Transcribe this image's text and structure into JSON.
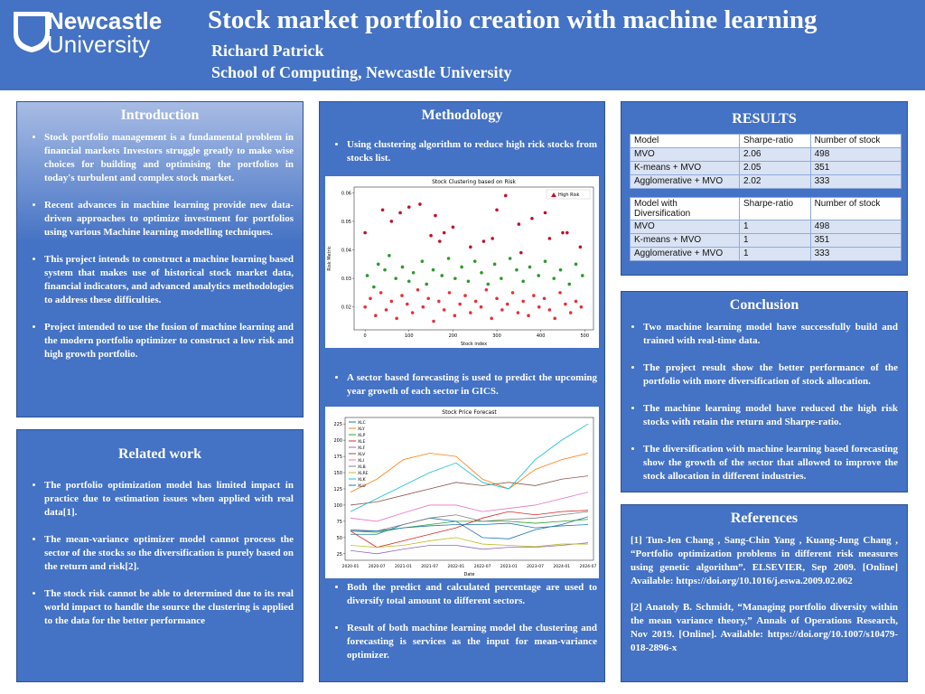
{
  "header": {
    "logo_line1": "Newcastle",
    "logo_line2": "University",
    "title": "Stock market portfolio creation with machine learning",
    "author": "Richard Patrick",
    "affiliation": "School of Computing, Newcastle University"
  },
  "introduction": {
    "heading": "Introduction",
    "paragraphs": [
      "Stock portfolio management is a fundamental problem in financial markets Investors struggle greatly to make wise choices for building and optimising the portfolios in today's turbulent and complex stock market.",
      "Recent advances in machine learning provide new data-driven approaches to optimize investment for portfolios using various Machine learning modelling techniques.",
      "This project intends to construct a machine learning based system that makes use of historical stock market data, financial indicators, and advanced analytics methodologies to address these difficulties.",
      "Project intended to use the fusion of machine learning and the modern portfolio optimizer to construct a low risk and high growth portfolio."
    ]
  },
  "related_work": {
    "heading": "Related work",
    "paragraphs": [
      "The portfolio optimization model has limited impact in practice due to estimation issues when applied with real data[1].",
      "The mean-variance optimizer model cannot process the sector of the stocks so the diversification is purely based on the return and risk[2].",
      "The stock risk cannot be able to determined due to its real world impact to handle the source the clustering is applied to the data for the better performance"
    ]
  },
  "methodology": {
    "heading": "Methodology",
    "paragraphs": [
      "Using clustering algorithm to reduce high rick stocks from stocks list.",
      "A sector based forecasting is used to predict the upcoming year growth of each sector in GICS.",
      "Both the predict and calculated percentage are used to diversify total amount to different sectors.",
      "Result of both machine learning model the clustering and forecasting is services as the input for mean-variance optimizer."
    ]
  },
  "results": {
    "heading": "RESULTS",
    "table1": {
      "header": [
        "Model",
        "Sharpe-ratio",
        "Number of stock"
      ],
      "rows": [
        [
          "MVO",
          2.06,
          498
        ],
        [
          "K-means + MVO",
          2.05,
          351
        ],
        [
          "Agglomerative + MVO",
          2.02,
          333
        ]
      ]
    },
    "table2": {
      "header": [
        "Model with Diversification",
        "Sharpe-ratio",
        "Number of stock"
      ],
      "rows": [
        [
          "MVO",
          1,
          498
        ],
        [
          "K-means + MVO",
          1,
          351
        ],
        [
          "Agglomerative + MVO",
          1,
          333
        ]
      ]
    }
  },
  "conclusion": {
    "heading": "Conclusion",
    "paragraphs": [
      "Two machine learning model have successfully build and trained with real-time data.",
      "The project result show the better performance of the portfolio with more diversification of stock allocation.",
      "The machine learning model have reduced the high risk stocks with retain the return and Sharpe-ratio.",
      "The diversification with machine learning based forecasting show the growth of the sector that allowed to improve the stock allocation in different industries."
    ]
  },
  "references": {
    "heading": "References",
    "paragraphs": [
      "[1] Tun-Jen Chang , Sang-Chin Yang , Kuang-Jung Chang , “Portfolio optimization problems in different risk measures using genetic algorithm”. ELSEVIER, Sep 2009. [Online] Available: https://doi.org/10.1016/j.eswa.2009.02.062",
      "[2] Anatoly B. Schmidt, “Managing portfolio diversity within the mean variance theory,” Annals of Operations Research, Nov 2019. [Online]. Available: https://doi.org/10.1007/s10479-018-2896-x"
    ]
  },
  "chart_data": [
    {
      "type": "scatter",
      "title": "Stock Clustering based on Risk",
      "xlabel": "Stock index",
      "ylabel": "Risk Metric",
      "xlim": [
        -25,
        520
      ],
      "ylim": [
        0.012,
        0.062
      ],
      "xticks": [
        0,
        100,
        200,
        300,
        400,
        500
      ],
      "yticks": [
        0.02,
        0.03,
        0.04,
        0.05,
        0.06
      ],
      "series": [
        {
          "name": "High Risk",
          "color": "#c0102f",
          "x": [
            0,
            40,
            60,
            80,
            100,
            125,
            150,
            160,
            170,
            180,
            200,
            240,
            270,
            290,
            300,
            320,
            350,
            355,
            380,
            410,
            420,
            450,
            460,
            490
          ],
          "values": [
            0.046,
            0.054,
            0.05,
            0.053,
            0.055,
            0.056,
            0.045,
            0.052,
            0.043,
            0.046,
            0.048,
            0.041,
            0.043,
            0.044,
            0.054,
            0.059,
            0.049,
            0.039,
            0.051,
            0.053,
            0.044,
            0.046,
            0.046,
            0.041
          ]
        },
        {
          "color": "#2e9a2e",
          "x": [
            5,
            20,
            30,
            45,
            55,
            70,
            85,
            100,
            110,
            130,
            140,
            155,
            175,
            190,
            205,
            220,
            235,
            250,
            265,
            280,
            295,
            310,
            330,
            345,
            360,
            375,
            395,
            410,
            430,
            445,
            465,
            480,
            495
          ],
          "values": [
            0.031,
            0.027,
            0.035,
            0.033,
            0.038,
            0.03,
            0.034,
            0.029,
            0.032,
            0.036,
            0.028,
            0.033,
            0.031,
            0.037,
            0.03,
            0.034,
            0.029,
            0.036,
            0.032,
            0.028,
            0.035,
            0.03,
            0.037,
            0.033,
            0.029,
            0.034,
            0.031,
            0.036,
            0.03,
            0.033,
            0.028,
            0.035,
            0.031
          ]
        },
        {
          "color": "#e8303a",
          "x": [
            0,
            12,
            24,
            36,
            48,
            60,
            72,
            84,
            96,
            108,
            120,
            132,
            144,
            156,
            168,
            180,
            192,
            204,
            216,
            228,
            240,
            252,
            264,
            276,
            288,
            300,
            312,
            324,
            336,
            348,
            360,
            372,
            384,
            396,
            408,
            420,
            432,
            444,
            456,
            468,
            480,
            492
          ],
          "values": [
            0.02,
            0.023,
            0.017,
            0.025,
            0.019,
            0.022,
            0.016,
            0.024,
            0.021,
            0.018,
            0.026,
            0.02,
            0.023,
            0.015,
            0.022,
            0.019,
            0.025,
            0.017,
            0.021,
            0.024,
            0.018,
            0.022,
            0.02,
            0.026,
            0.016,
            0.023,
            0.019,
            0.021,
            0.025,
            0.018,
            0.022,
            0.017,
            0.024,
            0.02,
            0.023,
            0.019,
            0.016,
            0.025,
            0.021,
            0.018,
            0.022,
            0.02
          ]
        }
      ]
    },
    {
      "type": "line",
      "title": "Stock Price Forecast",
      "xlabel": "Date",
      "categories": [
        "2020-01",
        "2020-07",
        "2021-01",
        "2021-07",
        "2022-01",
        "2022-07",
        "2023-01",
        "2023-07",
        "2024-01",
        "2024-07"
      ],
      "ylim": [
        15,
        235
      ],
      "yticks": [
        25,
        50,
        75,
        100,
        125,
        150,
        175,
        200,
        225
      ],
      "series": [
        {
          "name": "XLC",
          "color": "#1f77b4",
          "values": [
            55,
            55,
            70,
            80,
            75,
            50,
            48,
            62,
            70,
            82
          ]
        },
        {
          "name": "XLY",
          "color": "#ff7f0e",
          "values": [
            120,
            140,
            170,
            180,
            175,
            140,
            125,
            155,
            170,
            180
          ]
        },
        {
          "name": "XLP",
          "color": "#2ca02c",
          "values": [
            60,
            58,
            65,
            70,
            75,
            75,
            75,
            72,
            75,
            78
          ]
        },
        {
          "name": "XLE",
          "color": "#d62728",
          "values": [
            60,
            35,
            45,
            55,
            65,
            80,
            90,
            85,
            90,
            92
          ]
        },
        {
          "name": "XLF",
          "color": "#9467bd",
          "values": [
            30,
            25,
            32,
            38,
            38,
            32,
            35,
            35,
            38,
            42
          ]
        },
        {
          "name": "XLV",
          "color": "#8c564b",
          "values": [
            100,
            105,
            115,
            125,
            135,
            130,
            135,
            130,
            140,
            145
          ]
        },
        {
          "name": "XLI",
          "color": "#e377c2",
          "values": [
            80,
            75,
            88,
            100,
            100,
            90,
            95,
            100,
            110,
            120
          ]
        },
        {
          "name": "XLB",
          "color": "#7f7f7f",
          "values": [
            60,
            60,
            70,
            80,
            85,
            75,
            78,
            80,
            85,
            90
          ]
        },
        {
          "name": "XLRE",
          "color": "#bcbd22",
          "values": [
            38,
            35,
            38,
            45,
            50,
            40,
            38,
            36,
            40,
            40
          ]
        },
        {
          "name": "XLK",
          "color": "#17becf",
          "values": [
            90,
            110,
            130,
            150,
            165,
            135,
            125,
            170,
            200,
            225
          ]
        },
        {
          "name": "XLU",
          "color": "#1f77b4",
          "values": [
            62,
            60,
            65,
            68,
            70,
            70,
            72,
            65,
            68,
            70
          ]
        }
      ]
    }
  ]
}
